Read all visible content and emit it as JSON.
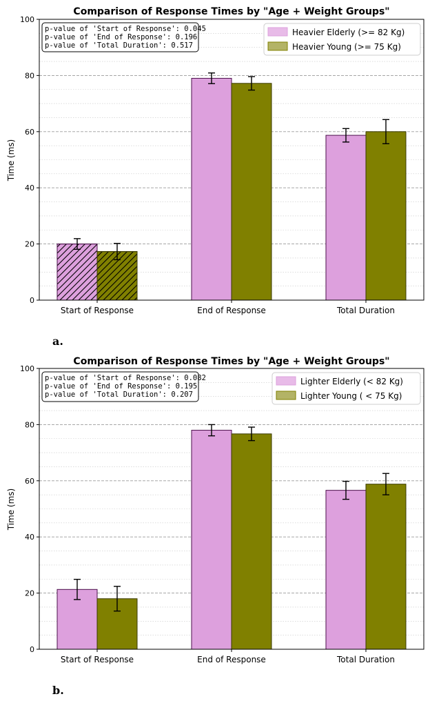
{
  "colors": {
    "elderly": "#dda0dd",
    "young": "#808000",
    "elderly_edge": "#4b0f4b",
    "young_edge": "#3a3a00"
  },
  "chart_data": [
    {
      "type": "bar",
      "panel_label": "a.",
      "title": "Comparison of Response Times by \"Age + Weight Groups\"",
      "ylabel": "Time (ms)",
      "xlabel": "",
      "ylim": [
        0,
        100
      ],
      "yticks": [
        "0",
        "20",
        "40",
        "60",
        "80",
        "100"
      ],
      "categories": [
        "Start of Response",
        "End of Response",
        "Total Duration"
      ],
      "hatched_category": "Start of Response",
      "series": [
        {
          "name": "Heavier Elderly (>= 82 Kg)",
          "values": [
            20.0,
            79.0,
            58.7
          ],
          "errors": [
            1.9,
            1.9,
            2.4
          ]
        },
        {
          "name": "Heavier Young (>= 75 Kg)",
          "values": [
            17.3,
            77.2,
            60.0
          ],
          "errors": [
            2.9,
            2.4,
            4.3
          ]
        }
      ],
      "pvalues": [
        "p-value of 'Start of Response': 0.045",
        "p-value of 'End of Response': 0.196",
        "p-value of 'Total Duration': 0.517"
      ],
      "legend_position": "top-right"
    },
    {
      "type": "bar",
      "panel_label": "b.",
      "title": "Comparison of Response Times by \"Age + Weight Groups\"",
      "ylabel": "Time (ms)",
      "xlabel": "",
      "ylim": [
        0,
        100
      ],
      "yticks": [
        "0",
        "20",
        "40",
        "60",
        "80",
        "100"
      ],
      "categories": [
        "Start of Response",
        "End of Response",
        "Total Duration"
      ],
      "hatched_category": "",
      "series": [
        {
          "name": "Lighter Elderly (< 82 Kg)",
          "values": [
            21.3,
            78.0,
            56.6
          ],
          "errors": [
            3.6,
            2.0,
            3.2
          ]
        },
        {
          "name": "Lighter Young ( < 75 Kg)",
          "values": [
            18.0,
            76.7,
            58.8
          ],
          "errors": [
            4.4,
            2.4,
            3.8
          ]
        }
      ],
      "pvalues": [
        "p-value of 'Start of Response': 0.082",
        "p-value of 'End of Response': 0.195",
        "p-value of 'Total Duration': 0.207"
      ],
      "legend_position": "top-right"
    }
  ]
}
